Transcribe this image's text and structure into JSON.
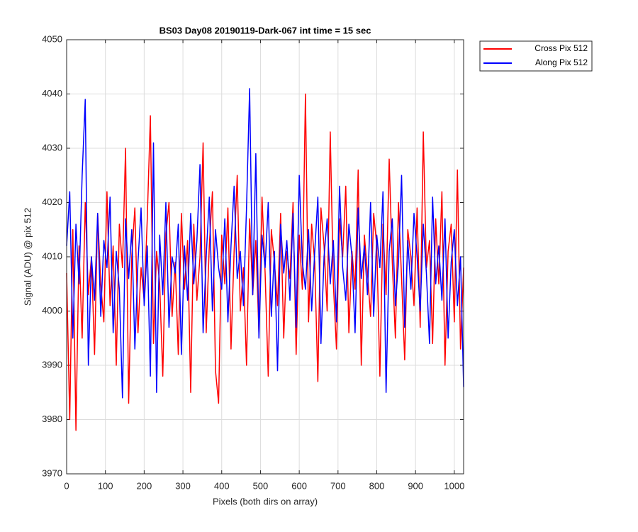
{
  "chart_data": {
    "type": "line",
    "title": "BS03 Day08 20190119-Dark-067 int time = 15 sec",
    "x_label": "Pixels (both dirs on array)",
    "y_label": "Signal (ADU) @ pix 512",
    "x": [
      0,
      8,
      16,
      24,
      32,
      40,
      48,
      56,
      64,
      72,
      80,
      88,
      96,
      104,
      112,
      120,
      128,
      136,
      144,
      152,
      160,
      168,
      176,
      184,
      192,
      200,
      208,
      216,
      224,
      232,
      240,
      248,
      256,
      264,
      272,
      280,
      288,
      296,
      304,
      312,
      320,
      328,
      336,
      344,
      352,
      360,
      368,
      376,
      384,
      392,
      400,
      408,
      416,
      424,
      432,
      440,
      448,
      456,
      464,
      472,
      480,
      488,
      496,
      504,
      512,
      520,
      528,
      536,
      544,
      552,
      560,
      568,
      576,
      584,
      592,
      600,
      608,
      616,
      624,
      632,
      640,
      648,
      656,
      664,
      672,
      680,
      688,
      696,
      704,
      712,
      720,
      728,
      736,
      744,
      752,
      760,
      768,
      776,
      784,
      792,
      800,
      808,
      816,
      824,
      832,
      840,
      848,
      856,
      864,
      872,
      880,
      888,
      896,
      904,
      912,
      920,
      928,
      936,
      944,
      952,
      960,
      968,
      976,
      984,
      992,
      1000,
      1008,
      1016,
      1024
    ],
    "series": [
      {
        "name": "Cross Pix 512",
        "color": "#ff0000",
        "values": [
          4007,
          3980,
          4015,
          3978,
          4012,
          3995,
          4020,
          4003,
          4010,
          3992,
          4018,
          4005,
          3998,
          4022,
          4001,
          4012,
          3990,
          4016,
          4008,
          4030,
          3983,
          4010,
          4019,
          3996,
          4008,
          4002,
          4017,
          4036,
          3994,
          4011,
          4005,
          3988,
          4014,
          4020,
          3999,
          4009,
          3992,
          4018,
          4004,
          4013,
          3985,
          4016,
          4002,
          4010,
          4031,
          3996,
          4012,
          4022,
          3989,
          3983,
          4014,
          4005,
          4019,
          3993,
          4011,
          4025,
          4000,
          4008,
          3990,
          4017,
          4003,
          4013,
          3996,
          4021,
          4007,
          3988,
          4015,
          4009,
          4001,
          4018,
          3995,
          4011,
          4006,
          4020,
          3992,
          4014,
          4004,
          4040,
          3998,
          4016,
          4009,
          3987,
          4019,
          4012,
          4000,
          4033,
          4005,
          3993,
          4017,
          4010,
          4023,
          3996,
          4011,
          4004,
          4026,
          3990,
          4014,
          4007,
          3999,
          4018,
          4012,
          3988,
          4016,
          4003,
          4028,
          4009,
          3995,
          4020,
          4006,
          3991,
          4015,
          4010,
          4001,
          4019,
          3997,
          4033,
          4008,
          4013,
          3994,
          4017,
          4005,
          4022,
          3990,
          4011,
          4016,
          3998,
          4026,
          3993,
          4008
        ]
      },
      {
        "name": "Along Pix 512",
        "color": "#0000ff",
        "values": [
          4012,
          4022,
          3995,
          4016,
          4005,
          4025,
          4039,
          3990,
          4010,
          4002,
          4018,
          3999,
          4013,
          4008,
          4021,
          3996,
          4011,
          4004,
          3984,
          4017,
          4006,
          4015,
          3993,
          4009,
          4019,
          4001,
          4012,
          3988,
          4031,
          3985,
          4014,
          4003,
          4020,
          3997,
          4010,
          4007,
          4016,
          3992,
          4012,
          4002,
          4018,
          4005,
          4013,
          4027,
          3996,
          4010,
          4021,
          4000,
          4015,
          4008,
          4004,
          4017,
          3998,
          4012,
          4023,
          4006,
          4011,
          4001,
          4019,
          4041,
          4003,
          4029,
          3995,
          4014,
          4008,
          4020,
          3999,
          4011,
          3989,
          4016,
          4007,
          4013,
          4002,
          4018,
          3997,
          4025,
          4009,
          4004,
          4015,
          4000,
          4011,
          4021,
          3994,
          4010,
          4017,
          4005,
          4013,
          3998,
          4023,
          4008,
          4002,
          4016,
          4010,
          3996,
          4019,
          4006,
          4012,
          4003,
          4020,
          3999,
          4014,
          4008,
          4022,
          3985,
          4011,
          4017,
          4001,
          4009,
          4025,
          3997,
          4013,
          4004,
          4018,
          4010,
          4000,
          4016,
          4007,
          3994,
          4021,
          4005,
          4012,
          4002,
          4017,
          3995,
          4009,
          4015,
          4001,
          4010,
          3986
        ]
      }
    ],
    "xlim": [
      0,
      1024
    ],
    "xticks": [
      0,
      100,
      200,
      300,
      400,
      500,
      600,
      700,
      800,
      900,
      1000
    ],
    "ylim": [
      3970,
      4050
    ],
    "yticks": [
      3970,
      3980,
      3990,
      4000,
      4010,
      4020,
      4030,
      4040,
      4050
    ],
    "grid": true,
    "legend_position": "outside-top-right"
  }
}
